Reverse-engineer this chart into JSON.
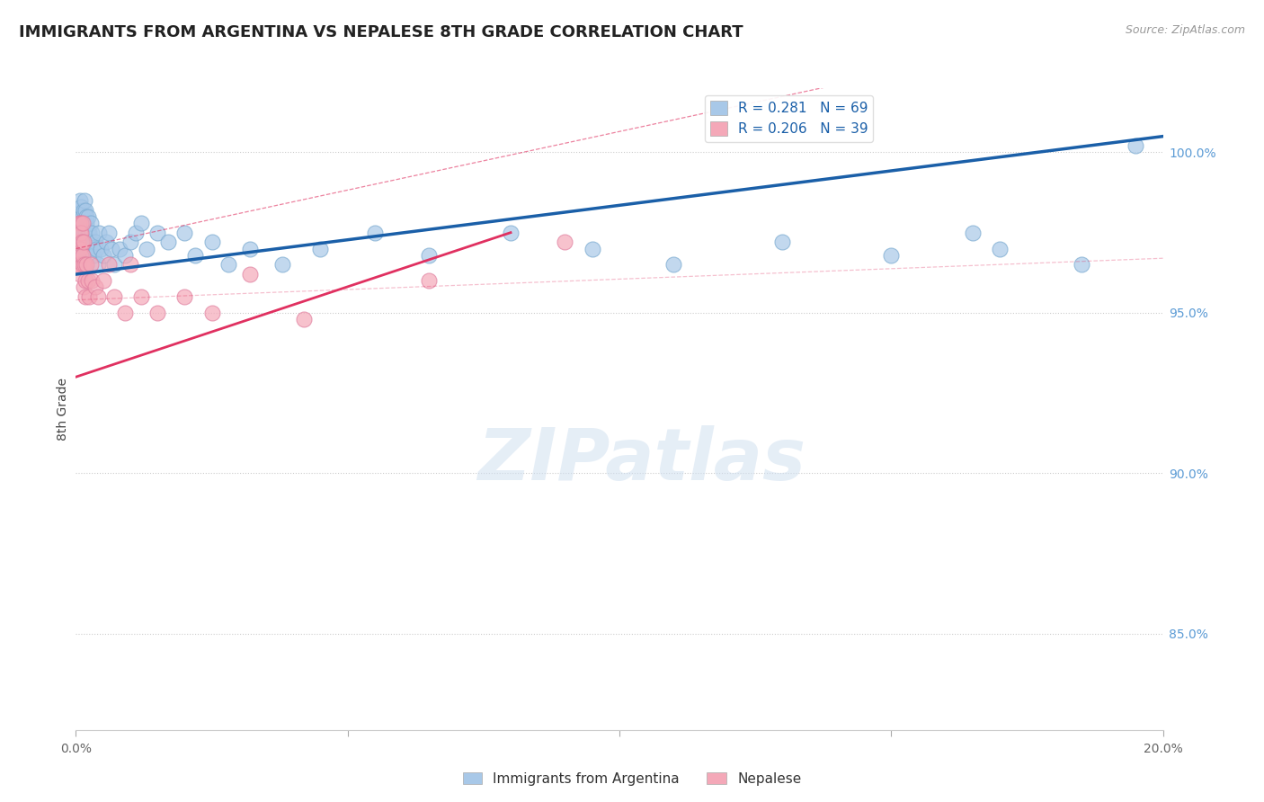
{
  "title": "IMMIGRANTS FROM ARGENTINA VS NEPALESE 8TH GRADE CORRELATION CHART",
  "source": "Source: ZipAtlas.com",
  "ylabel": "8th Grade",
  "ylabel_right_ticks": [
    100.0,
    95.0,
    90.0,
    85.0
  ],
  "xlim": [
    0.0,
    20.0
  ],
  "ylim": [
    82.0,
    102.0
  ],
  "argentina_R": 0.281,
  "argentina_N": 69,
  "nepalese_R": 0.206,
  "nepalese_N": 39,
  "blue_color": "#a8c8e8",
  "pink_color": "#f4a8b8",
  "trend_blue": "#1a5fa8",
  "trend_pink": "#e03060",
  "argentina_points_x": [
    0.05,
    0.05,
    0.06,
    0.07,
    0.08,
    0.09,
    0.1,
    0.1,
    0.1,
    0.11,
    0.12,
    0.12,
    0.13,
    0.14,
    0.15,
    0.15,
    0.16,
    0.16,
    0.17,
    0.18,
    0.18,
    0.19,
    0.2,
    0.2,
    0.21,
    0.22,
    0.23,
    0.25,
    0.26,
    0.27,
    0.28,
    0.3,
    0.32,
    0.35,
    0.38,
    0.4,
    0.42,
    0.45,
    0.5,
    0.55,
    0.6,
    0.65,
    0.7,
    0.8,
    0.9,
    1.0,
    1.1,
    1.2,
    1.3,
    1.5,
    1.7,
    2.0,
    2.2,
    2.5,
    2.8,
    3.2,
    3.8,
    4.5,
    5.5,
    6.5,
    8.0,
    9.5,
    11.0,
    13.0,
    15.0,
    16.5,
    17.0,
    18.5,
    19.5
  ],
  "argentina_points_y": [
    97.5,
    98.2,
    97.8,
    98.5,
    97.0,
    98.0,
    97.5,
    98.3,
    96.8,
    97.2,
    97.8,
    98.0,
    97.2,
    98.2,
    97.5,
    96.5,
    97.8,
    98.5,
    97.0,
    97.5,
    98.2,
    97.0,
    97.8,
    98.0,
    97.2,
    97.5,
    98.0,
    97.5,
    97.0,
    97.8,
    97.2,
    97.5,
    96.8,
    97.2,
    97.0,
    96.5,
    97.5,
    97.0,
    96.8,
    97.2,
    97.5,
    97.0,
    96.5,
    97.0,
    96.8,
    97.2,
    97.5,
    97.8,
    97.0,
    97.5,
    97.2,
    97.5,
    96.8,
    97.2,
    96.5,
    97.0,
    96.5,
    97.0,
    97.5,
    96.8,
    97.5,
    97.0,
    96.5,
    97.2,
    96.8,
    97.5,
    97.0,
    96.5,
    100.2
  ],
  "nepalese_points_x": [
    0.04,
    0.05,
    0.06,
    0.06,
    0.07,
    0.08,
    0.08,
    0.09,
    0.1,
    0.1,
    0.11,
    0.12,
    0.12,
    0.13,
    0.14,
    0.15,
    0.16,
    0.17,
    0.18,
    0.2,
    0.22,
    0.25,
    0.28,
    0.3,
    0.35,
    0.4,
    0.5,
    0.6,
    0.7,
    0.9,
    1.0,
    1.2,
    1.5,
    2.0,
    2.5,
    3.2,
    4.2,
    6.5,
    9.0
  ],
  "nepalese_points_y": [
    96.5,
    97.2,
    97.8,
    96.5,
    97.5,
    97.0,
    96.2,
    97.8,
    96.8,
    97.5,
    97.2,
    96.5,
    97.8,
    96.8,
    95.8,
    97.2,
    96.5,
    96.0,
    95.5,
    96.5,
    96.0,
    95.5,
    96.5,
    96.0,
    95.8,
    95.5,
    96.0,
    96.5,
    95.5,
    95.0,
    96.5,
    95.5,
    95.0,
    95.5,
    95.0,
    96.2,
    94.8,
    96.0,
    97.2
  ],
  "argentina_trend_x0": 0.0,
  "argentina_trend_y0": 96.2,
  "argentina_trend_x1": 20.0,
  "argentina_trend_y1": 100.5,
  "nepalese_trend_x0": 0.0,
  "nepalese_trend_y0": 93.0,
  "nepalese_trend_x1": 8.0,
  "nepalese_trend_y1": 97.5
}
